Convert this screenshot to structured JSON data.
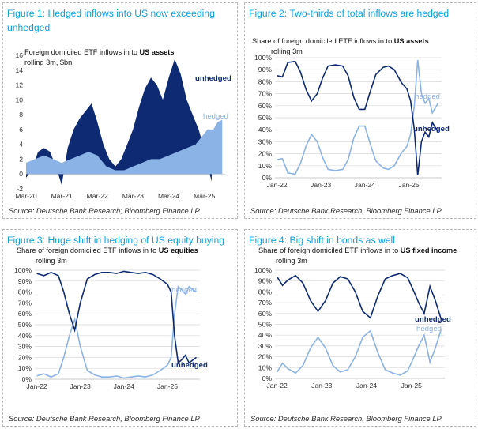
{
  "colors": {
    "dark": "#0d2a73",
    "light": "#8cb3e6",
    "title": "#0aa3dd",
    "grid": "#d9d9d9"
  },
  "panels": [
    {
      "title": "Figure 1: Hedged inflows into US now exceeding unhedged",
      "subtitle_pre": "Foreign domiciled ETF inflows in to ",
      "subtitle_bold": "US assets",
      "subtitle_line2": "rolling 3m, $bn",
      "source": "Source: Deutsche Bank Research; Bloomberg Finance LP"
    },
    {
      "title": "Figure 2: Two-thirds of total inflows are hedged",
      "subtitle_pre": "Share of foreign domiciled ETF inflows in to ",
      "subtitle_bold": "US assets",
      "subtitle_line2": "rolling 3m",
      "source": "Source: Deutsche Bank Research, Bloomberg Finance LP"
    },
    {
      "title": "Figure 3: Huge shift in hedging of US equity buying",
      "subtitle_pre": "Share of foreign domiciled ETF inflows in to ",
      "subtitle_bold": "US equities",
      "subtitle_line2": "rolling 3m",
      "source": "Source: Deutsche Bank Research, Bloomberg Finance LP"
    },
    {
      "title": "Figure 4: Big shift in bonds as well",
      "subtitle_pre": "Share of foreign domiciled ETF inflows in to ",
      "subtitle_bold": "US fixed income",
      "subtitle_line2": "rolling 3m",
      "source": "Source: Deutsche Bank Research, Bloomberg Finance LP"
    }
  ],
  "chart_data": [
    {
      "type": "area",
      "ylim": [
        -2,
        16
      ],
      "yticks": [
        -2,
        0,
        2,
        4,
        6,
        8,
        10,
        12,
        14,
        16
      ],
      "xlim": [
        "2020-03-01",
        "2025-09-30"
      ],
      "xticks": [
        {
          "label": "Mar-20",
          "date": "2020-03-01"
        },
        {
          "label": "Mar-21",
          "date": "2021-03-01"
        },
        {
          "label": "Mar-22",
          "date": "2022-03-01"
        },
        {
          "label": "Mar-23",
          "date": "2023-03-01"
        },
        {
          "label": "Mar-24",
          "date": "2024-03-01"
        },
        {
          "label": "Mar-25",
          "date": "2025-03-01"
        }
      ],
      "series": [
        {
          "name": "unhedged",
          "x": [
            "2020-03-01",
            "2020-05-01",
            "2020-07-01",
            "2020-09-01",
            "2020-11-01",
            "2021-01-01",
            "2021-03-01",
            "2021-05-01",
            "2021-07-01",
            "2021-09-01",
            "2021-11-01",
            "2022-01-01",
            "2022-03-01",
            "2022-05-01",
            "2022-07-01",
            "2022-09-01",
            "2022-11-01",
            "2023-01-01",
            "2023-03-01",
            "2023-05-01",
            "2023-07-01",
            "2023-09-01",
            "2023-11-01",
            "2024-01-01",
            "2024-03-01",
            "2024-05-01",
            "2024-07-01",
            "2024-09-01",
            "2024-11-01",
            "2025-01-01",
            "2025-02-15",
            "2025-03-15",
            "2025-04-15",
            "2025-05-15"
          ],
          "values": [
            -0.5,
            0.5,
            3.0,
            3.5,
            3.0,
            1.0,
            -1.5,
            3.5,
            6.0,
            7.5,
            8.5,
            9.5,
            7.0,
            4.0,
            2.0,
            1.0,
            2.0,
            4.0,
            6.0,
            9.0,
            11.5,
            13.0,
            12.0,
            10.0,
            13.0,
            15.5,
            13.5,
            10.0,
            8.0,
            6.0,
            4.0,
            2.0,
            0.5,
            -1.0
          ]
        },
        {
          "name": "hedged",
          "x": [
            "2020-03-01",
            "2020-06-01",
            "2020-09-01",
            "2020-12-01",
            "2021-03-01",
            "2021-06-01",
            "2021-09-01",
            "2021-12-01",
            "2022-03-01",
            "2022-06-01",
            "2022-09-01",
            "2022-12-01",
            "2023-03-01",
            "2023-06-01",
            "2023-09-01",
            "2023-12-01",
            "2024-03-01",
            "2024-06-01",
            "2024-09-01",
            "2024-12-01",
            "2025-02-01",
            "2025-04-01",
            "2025-06-01",
            "2025-07-15",
            "2025-08-31"
          ],
          "values": [
            1.5,
            2.0,
            2.5,
            2.0,
            1.5,
            2.0,
            2.5,
            3.0,
            2.5,
            1.0,
            0.5,
            0.5,
            1.0,
            1.5,
            2.0,
            2.0,
            2.5,
            3.0,
            3.5,
            4.0,
            5.0,
            6.0,
            6.0,
            7.0,
            7.3
          ]
        }
      ]
    },
    {
      "type": "line",
      "ylim": [
        0,
        100
      ],
      "ytick_labels": [
        "0%",
        "10%",
        "20%",
        "30%",
        "40%",
        "50%",
        "60%",
        "70%",
        "80%",
        "90%",
        "100%"
      ],
      "xlim": [
        "2021-12-15",
        "2025-09-30"
      ],
      "xticks": [
        {
          "label": "Jan-22",
          "date": "2022-01-01"
        },
        {
          "label": "Jan-23",
          "date": "2023-01-01"
        },
        {
          "label": "Jan-24",
          "date": "2024-01-01"
        },
        {
          "label": "Jan-25",
          "date": "2025-01-01"
        }
      ],
      "series": [
        {
          "name": "unhedged",
          "x": [
            "2022-01-01",
            "2022-02-15",
            "2022-04-01",
            "2022-06-01",
            "2022-07-15",
            "2022-09-01",
            "2022-10-15",
            "2022-12-01",
            "2023-01-15",
            "2023-03-01",
            "2023-05-01",
            "2023-07-01",
            "2023-08-15",
            "2023-10-01",
            "2023-11-15",
            "2024-01-01",
            "2024-02-15",
            "2024-04-01",
            "2024-06-01",
            "2024-07-15",
            "2024-09-01",
            "2024-11-01",
            "2024-12-15",
            "2025-01-15",
            "2025-02-15",
            "2025-03-15",
            "2025-04-15",
            "2025-05-15",
            "2025-06-15",
            "2025-07-15",
            "2025-08-31"
          ],
          "values": [
            85,
            84,
            96,
            97,
            88,
            73,
            64,
            70,
            83,
            93,
            94,
            93,
            85,
            67,
            57,
            57,
            72,
            86,
            92,
            93,
            90,
            79,
            74,
            64,
            40,
            2,
            30,
            38,
            34,
            46,
            38
          ]
        },
        {
          "name": "hedged",
          "x": [
            "2022-01-01",
            "2022-02-15",
            "2022-04-01",
            "2022-06-01",
            "2022-07-15",
            "2022-09-01",
            "2022-10-15",
            "2022-12-01",
            "2023-01-15",
            "2023-03-01",
            "2023-05-01",
            "2023-07-01",
            "2023-08-15",
            "2023-10-01",
            "2023-11-15",
            "2024-01-01",
            "2024-02-15",
            "2024-04-01",
            "2024-06-01",
            "2024-07-15",
            "2024-09-01",
            "2024-11-01",
            "2024-12-15",
            "2025-01-15",
            "2025-02-15",
            "2025-03-15",
            "2025-04-15",
            "2025-05-15",
            "2025-06-15",
            "2025-07-15",
            "2025-08-31"
          ],
          "values": [
            15,
            16,
            4,
            3,
            12,
            27,
            36,
            30,
            17,
            7,
            6,
            7,
            15,
            33,
            43,
            43,
            28,
            14,
            8,
            7,
            10,
            21,
            26,
            36,
            60,
            98,
            70,
            62,
            66,
            54,
            62
          ]
        }
      ]
    },
    {
      "type": "line",
      "ylim": [
        0,
        100
      ],
      "ytick_labels": [
        "0%",
        "10%",
        "20%",
        "30%",
        "40%",
        "50%",
        "60%",
        "70%",
        "80%",
        "90%",
        "100%"
      ],
      "xlim": [
        "2021-12-15",
        "2025-09-30"
      ],
      "xticks": [
        {
          "label": "Jan-22",
          "date": "2022-01-01"
        },
        {
          "label": "Jan-23",
          "date": "2023-01-01"
        },
        {
          "label": "Jan-24",
          "date": "2024-01-01"
        },
        {
          "label": "Jan-25",
          "date": "2025-01-01"
        }
      ],
      "series": [
        {
          "name": "unhedged",
          "x": [
            "2022-01-01",
            "2022-03-01",
            "2022-05-01",
            "2022-07-01",
            "2022-08-15",
            "2022-10-01",
            "2022-11-15",
            "2023-01-01",
            "2023-03-01",
            "2023-05-01",
            "2023-07-01",
            "2023-09-01",
            "2023-11-01",
            "2024-01-01",
            "2024-03-01",
            "2024-05-01",
            "2024-07-01",
            "2024-09-01",
            "2024-11-01",
            "2025-01-01",
            "2025-02-01",
            "2025-03-01",
            "2025-04-01",
            "2025-05-01",
            "2025-06-01",
            "2025-07-01",
            "2025-08-31"
          ],
          "values": [
            97,
            95,
            98,
            95,
            80,
            60,
            45,
            70,
            92,
            96,
            98,
            98,
            97,
            99,
            98,
            97,
            98,
            96,
            92,
            87,
            80,
            40,
            15,
            18,
            22,
            15,
            20
          ]
        },
        {
          "name": "hedged",
          "x": [
            "2022-01-01",
            "2022-03-01",
            "2022-05-01",
            "2022-07-01",
            "2022-08-15",
            "2022-10-01",
            "2022-11-15",
            "2023-01-01",
            "2023-03-01",
            "2023-05-01",
            "2023-07-01",
            "2023-09-01",
            "2023-11-01",
            "2024-01-01",
            "2024-03-01",
            "2024-05-01",
            "2024-07-01",
            "2024-09-01",
            "2024-11-01",
            "2025-01-01",
            "2025-02-01",
            "2025-03-01",
            "2025-04-01",
            "2025-05-01",
            "2025-06-01",
            "2025-07-01",
            "2025-08-31"
          ],
          "values": [
            3,
            5,
            2,
            5,
            20,
            40,
            55,
            30,
            8,
            4,
            2,
            2,
            3,
            1,
            2,
            3,
            2,
            4,
            8,
            13,
            20,
            60,
            85,
            82,
            78,
            85,
            80
          ]
        }
      ]
    },
    {
      "type": "line",
      "ylim": [
        0,
        100
      ],
      "ytick_labels": [
        "0%",
        "10%",
        "20%",
        "30%",
        "40%",
        "50%",
        "60%",
        "70%",
        "80%",
        "90%",
        "100%"
      ],
      "xlim": [
        "2021-12-15",
        "2025-09-30"
      ],
      "xticks": [
        {
          "label": "Jan-22",
          "date": "2022-01-01"
        },
        {
          "label": "Jan-23",
          "date": "2023-01-01"
        },
        {
          "label": "Jan-24",
          "date": "2024-01-01"
        },
        {
          "label": "Jan-25",
          "date": "2025-01-01"
        }
      ],
      "series": [
        {
          "name": "unhedged",
          "x": [
            "2022-01-01",
            "2022-02-15",
            "2022-04-01",
            "2022-06-01",
            "2022-08-01",
            "2022-10-01",
            "2022-12-01",
            "2023-02-01",
            "2023-04-01",
            "2023-06-01",
            "2023-08-01",
            "2023-10-01",
            "2023-12-01",
            "2024-02-01",
            "2024-04-01",
            "2024-06-01",
            "2024-08-01",
            "2024-10-01",
            "2024-12-01",
            "2025-01-15",
            "2025-03-01",
            "2025-04-15",
            "2025-06-01",
            "2025-07-15",
            "2025-08-31"
          ],
          "values": [
            94,
            86,
            91,
            95,
            88,
            72,
            62,
            72,
            88,
            94,
            92,
            80,
            62,
            56,
            76,
            92,
            95,
            97,
            93,
            82,
            70,
            60,
            85,
            72,
            55
          ]
        },
        {
          "name": "hedged",
          "x": [
            "2022-01-01",
            "2022-02-15",
            "2022-04-01",
            "2022-06-01",
            "2022-08-01",
            "2022-10-01",
            "2022-12-01",
            "2023-02-01",
            "2023-04-01",
            "2023-06-01",
            "2023-08-01",
            "2023-10-01",
            "2023-12-01",
            "2024-02-01",
            "2024-04-01",
            "2024-06-01",
            "2024-08-01",
            "2024-10-01",
            "2024-12-01",
            "2025-01-15",
            "2025-03-01",
            "2025-04-15",
            "2025-06-01",
            "2025-07-15",
            "2025-08-31"
          ],
          "values": [
            6,
            14,
            9,
            5,
            12,
            28,
            38,
            28,
            12,
            6,
            8,
            20,
            38,
            44,
            24,
            8,
            5,
            3,
            7,
            18,
            30,
            40,
            15,
            28,
            45
          ]
        }
      ]
    }
  ]
}
